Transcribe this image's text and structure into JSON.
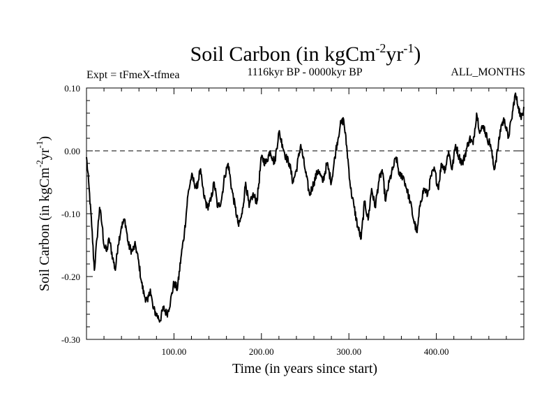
{
  "chart_data": {
    "type": "line",
    "title_main": "Soil Carbon (in kgCm",
    "title_exp1": "-2",
    "title_mid": "yr",
    "title_exp2": "-1",
    "title_close": ")",
    "expt_label": "Expt = tFmeX-tfmea",
    "period_label": "1116kyr BP - 0000kyr BP",
    "months_label": "ALL_MONTHS",
    "xlabel": "Time (in years since start)",
    "ylabel_main": "Soil Carbon (in kgCm",
    "ylabel_exp1": "-2",
    "ylabel_mid": "yr",
    "ylabel_exp2": "-1",
    "ylabel_close": ")",
    "xlim": [
      0,
      500
    ],
    "ylim": [
      -0.3,
      0.1
    ],
    "x_ticks": [
      100,
      200,
      300,
      400
    ],
    "x_tick_labels": [
      "100.00",
      "200.00",
      "300.00",
      "400.00"
    ],
    "y_ticks": [
      0.1,
      0.0,
      -0.1,
      -0.2,
      -0.3
    ],
    "y_tick_labels": [
      "0.10",
      "0.00",
      "-0.10",
      "-0.20",
      "-0.30"
    ],
    "reference_line": 0.0,
    "series": [
      {
        "name": "Soil Carbon",
        "x": [
          0,
          3,
          6,
          9,
          12,
          15,
          18,
          20,
          23,
          26,
          30,
          33,
          36,
          40,
          44,
          48,
          52,
          56,
          60,
          63,
          66,
          70,
          73,
          76,
          80,
          84,
          88,
          92,
          96,
          100,
          104,
          108,
          112,
          116,
          120,
          123,
          126,
          130,
          134,
          138,
          142,
          146,
          150,
          154,
          158,
          162,
          166,
          170,
          174,
          178,
          182,
          186,
          190,
          195,
          200,
          205,
          210,
          215,
          220,
          224,
          228,
          232,
          236,
          240,
          245,
          250,
          255,
          260,
          265,
          270,
          275,
          280,
          285,
          290,
          294,
          298,
          302,
          306,
          310,
          314,
          318,
          322,
          326,
          330,
          334,
          338,
          342,
          346,
          350,
          354,
          358,
          362,
          366,
          370,
          374,
          378,
          382,
          386,
          390,
          394,
          398,
          402,
          406,
          410,
          414,
          418,
          422,
          426,
          430,
          434,
          438,
          442,
          446,
          450,
          454,
          458,
          462,
          466,
          470,
          474,
          478,
          482,
          486,
          490,
          494,
          497,
          500
        ],
        "values": [
          -0.01,
          -0.06,
          -0.12,
          -0.19,
          -0.14,
          -0.09,
          -0.12,
          -0.15,
          -0.16,
          -0.14,
          -0.17,
          -0.19,
          -0.15,
          -0.12,
          -0.11,
          -0.15,
          -0.16,
          -0.15,
          -0.18,
          -0.21,
          -0.23,
          -0.24,
          -0.22,
          -0.25,
          -0.26,
          -0.27,
          -0.25,
          -0.26,
          -0.24,
          -0.21,
          -0.22,
          -0.17,
          -0.13,
          -0.07,
          -0.04,
          -0.05,
          -0.06,
          -0.03,
          -0.07,
          -0.09,
          -0.08,
          -0.05,
          -0.09,
          -0.08,
          -0.04,
          -0.02,
          -0.06,
          -0.09,
          -0.12,
          -0.1,
          -0.05,
          -0.09,
          -0.07,
          -0.08,
          -0.01,
          -0.02,
          0.0,
          -0.02,
          0.03,
          0.01,
          -0.01,
          -0.02,
          -0.05,
          -0.03,
          0.01,
          -0.03,
          -0.07,
          -0.05,
          -0.03,
          -0.05,
          -0.02,
          -0.05,
          0.0,
          0.04,
          0.05,
          0.0,
          -0.06,
          -0.09,
          -0.12,
          -0.14,
          -0.08,
          -0.11,
          -0.06,
          -0.09,
          -0.05,
          -0.03,
          -0.08,
          -0.05,
          -0.03,
          -0.01,
          -0.04,
          -0.04,
          -0.06,
          -0.08,
          -0.11,
          -0.13,
          -0.08,
          -0.06,
          -0.07,
          -0.04,
          -0.03,
          -0.06,
          -0.02,
          -0.03,
          0.0,
          -0.03,
          0.01,
          -0.01,
          -0.02,
          0.0,
          0.02,
          0.01,
          0.06,
          0.03,
          0.04,
          0.02,
          0.01,
          -0.03,
          0.0,
          0.04,
          0.05,
          0.02,
          0.05,
          0.09,
          0.07,
          0.05,
          0.07
        ]
      }
    ]
  }
}
